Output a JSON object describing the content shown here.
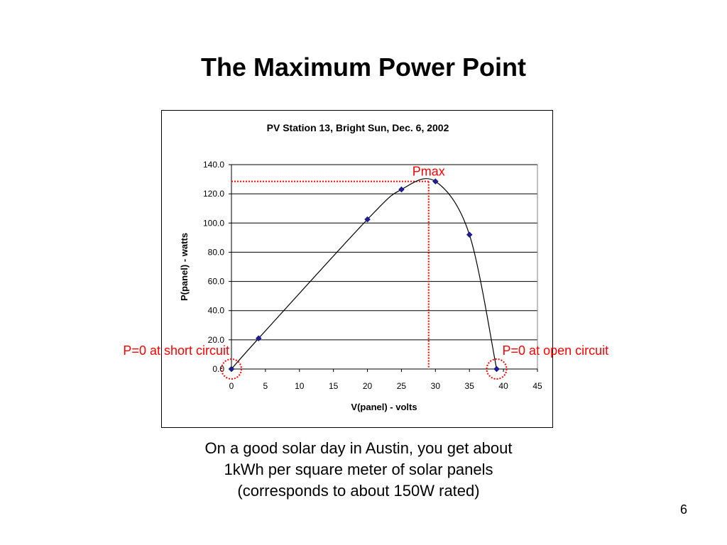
{
  "slide": {
    "title": "The Maximum Power Point",
    "caption_lines": [
      "On a good solar day in Austin, you get about",
      "1kWh per square meter of solar panels",
      "(corresponds to about 150W rated)"
    ],
    "page_number": "6"
  },
  "colors": {
    "marker": "#1f1f8f",
    "annotation": "#ff0000",
    "curve": "#000000",
    "grid": "#000000"
  },
  "chart_data": {
    "type": "scatter",
    "title": "PV Station 13, Bright Sun, Dec. 6, 2002",
    "xlabel": "V(panel) - volts",
    "ylabel": "P(panel) - watts",
    "xlim": [
      0,
      45
    ],
    "ylim": [
      0,
      140
    ],
    "x_ticks": [
      "0",
      "5",
      "10",
      "15",
      "20",
      "25",
      "30",
      "35",
      "40",
      "45"
    ],
    "y_ticks": [
      "0.0",
      "20.0",
      "40.0",
      "60.0",
      "80.0",
      "100.0",
      "120.0",
      "140.0"
    ],
    "grid": "horizontal",
    "series": [
      {
        "points": [
          [
            0,
            0
          ],
          [
            4,
            21
          ],
          [
            20,
            102.5
          ],
          [
            25,
            123
          ],
          [
            30,
            128.5
          ],
          [
            35,
            92
          ],
          [
            39,
            0
          ]
        ],
        "smoothed_line": true
      }
    ],
    "annotations": [
      {
        "text": "Pmax",
        "x": 29,
        "y": 128.5
      },
      {
        "text": "P=0 at short circuit",
        "x": 0,
        "y": 0
      },
      {
        "text": "P=0 at open circuit",
        "x": 39,
        "y": 0
      }
    ]
  }
}
